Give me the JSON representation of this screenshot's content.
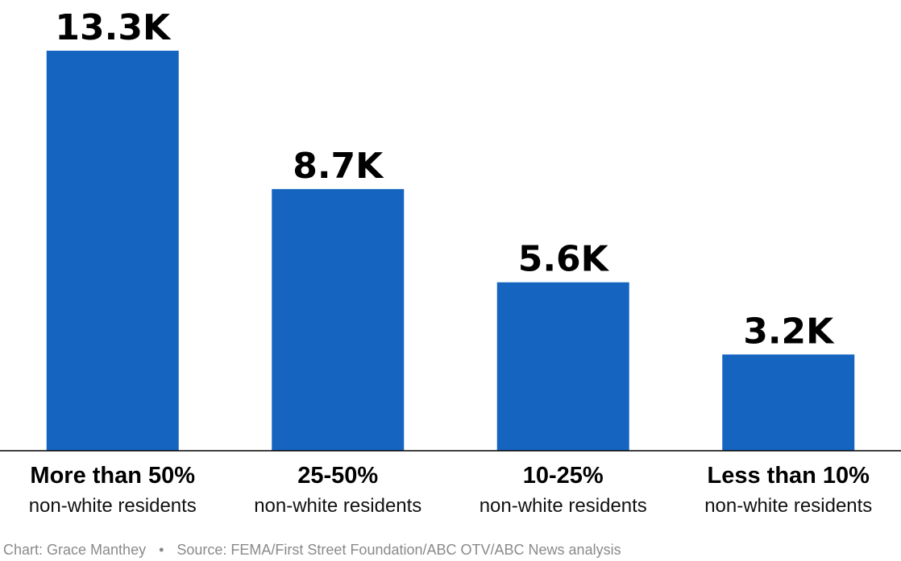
{
  "chart_data": {
    "type": "bar",
    "categories": [
      {
        "label": "More than 50%",
        "sublabel": "non-white residents"
      },
      {
        "label": "25-50%",
        "sublabel": "non-white residents"
      },
      {
        "label": "10-25%",
        "sublabel": "non-white residents"
      },
      {
        "label": "Less than 10%",
        "sublabel": "non-white residents"
      }
    ],
    "values": [
      13.3,
      8.7,
      5.6,
      3.2
    ],
    "value_labels": [
      "13.3K",
      "8.7K",
      "5.6K",
      "3.2K"
    ],
    "ylim": [
      0,
      13.3
    ],
    "grid": false,
    "bar_color": "#1565C0",
    "baseline_color": "#000000"
  },
  "footer": {
    "credit": "Chart: Grace Manthey",
    "separator": "•",
    "source": "Source: FEMA/First Street Foundation/ABC OTV/ABC News analysis"
  }
}
